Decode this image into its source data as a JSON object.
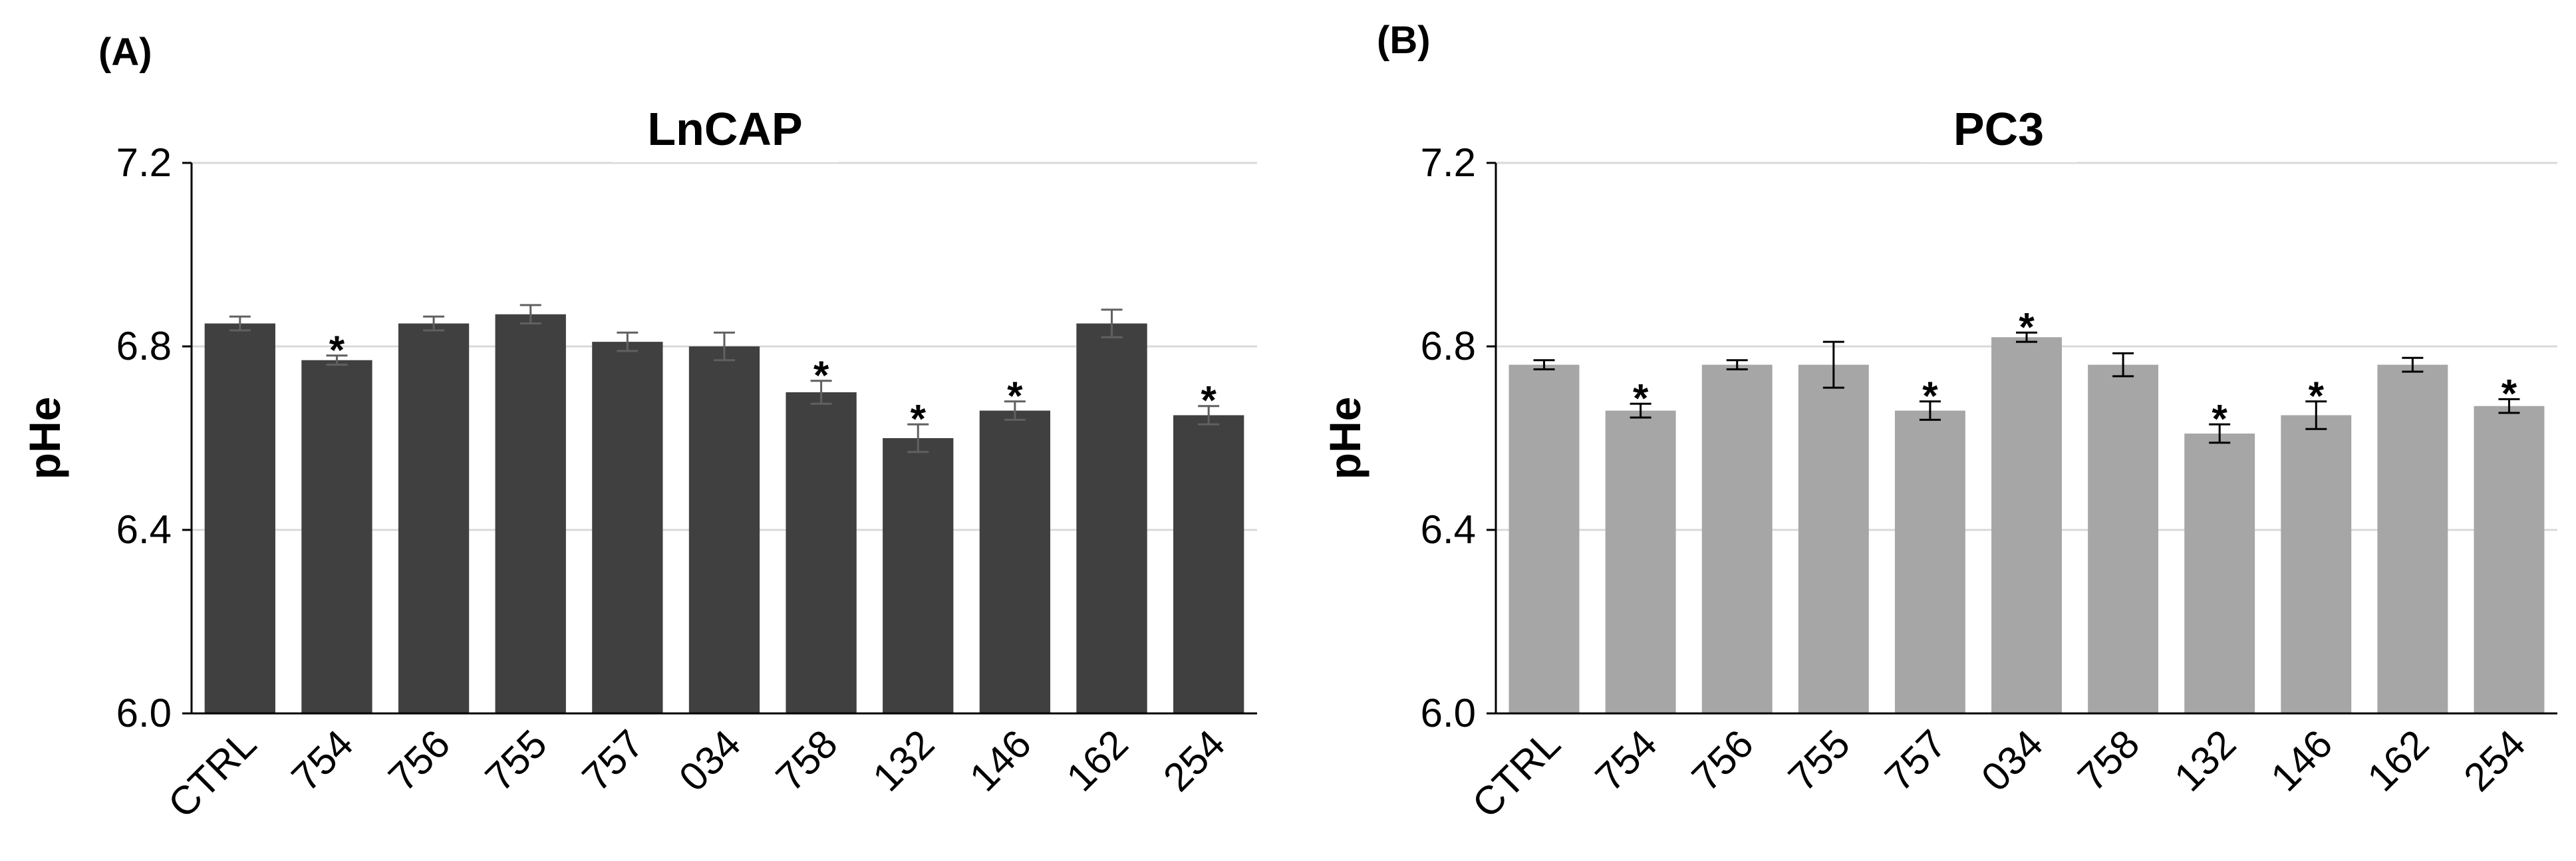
{
  "panels": [
    {
      "label": "(A)"
    },
    {
      "label": "(B)"
    }
  ],
  "chart_data": [
    {
      "type": "bar",
      "title": "LnCAP",
      "xlabel": "",
      "ylabel": "pHe",
      "ylim": [
        6.0,
        7.2
      ],
      "yticks": [
        6.0,
        6.4,
        6.8,
        7.2
      ],
      "ytick_labels": [
        "6.0",
        "6.4",
        "6.8",
        "7.2"
      ],
      "grid": true,
      "bar_color": "#404040",
      "categories": [
        "CTRL",
        "754",
        "756",
        "755",
        "757",
        "034",
        "758",
        "132",
        "146",
        "162",
        "254"
      ],
      "values": [
        6.85,
        6.77,
        6.85,
        6.87,
        6.81,
        6.8,
        6.7,
        6.6,
        6.66,
        6.85,
        6.65
      ],
      "errors": [
        0.015,
        0.01,
        0.015,
        0.02,
        0.02,
        0.03,
        0.025,
        0.03,
        0.02,
        0.03,
        0.02
      ],
      "significance": [
        "",
        "*",
        "",
        "",
        "",
        "",
        "*",
        "*",
        "*",
        "",
        "*"
      ]
    },
    {
      "type": "bar",
      "title": "PC3",
      "xlabel": "",
      "ylabel": "pHe",
      "ylim": [
        6.0,
        7.2
      ],
      "yticks": [
        6.0,
        6.4,
        6.8,
        7.2
      ],
      "ytick_labels": [
        "6.0",
        "6.4",
        "6.8",
        "7.2"
      ],
      "grid": true,
      "bar_color": "#a6a6a6",
      "categories": [
        "CTRL",
        "754",
        "756",
        "755",
        "757",
        "034",
        "758",
        "132",
        "146",
        "162",
        "254"
      ],
      "values": [
        6.76,
        6.66,
        6.76,
        6.76,
        6.66,
        6.82,
        6.76,
        6.61,
        6.65,
        6.76,
        6.67
      ],
      "errors": [
        0.01,
        0.015,
        0.01,
        0.05,
        0.02,
        0.01,
        0.025,
        0.02,
        0.03,
        0.015,
        0.015
      ],
      "significance": [
        "",
        "*",
        "",
        "",
        "*",
        "*",
        "",
        "*",
        "*",
        "",
        "*"
      ]
    }
  ]
}
